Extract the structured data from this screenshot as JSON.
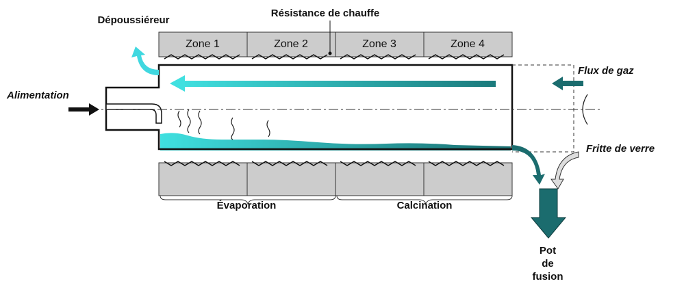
{
  "labels": {
    "depoussiereur": "Dépoussiéreur",
    "resistance": "Résistance de chauffe",
    "flux": "Flux de gaz",
    "alimentation": "Alimentation",
    "fritte": "Fritte de verre"
  },
  "zones": [
    "Zone 1",
    "Zone 2",
    "Zone 3",
    "Zone 4"
  ],
  "phases": [
    "Évaporation",
    "Calcination"
  ],
  "pot": [
    "Pot",
    "de",
    "fusion"
  ]
}
